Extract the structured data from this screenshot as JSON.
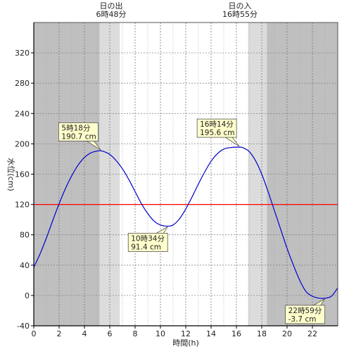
{
  "chart_data": {
    "type": "line",
    "title": "",
    "xlabel": "時間(h)",
    "ylabel": "水位(cm)",
    "xlim": [
      0,
      24
    ],
    "ylim": [
      -40,
      360
    ],
    "xticks": [
      0,
      2,
      4,
      6,
      8,
      10,
      12,
      14,
      16,
      18,
      20,
      22
    ],
    "yticks": [
      -40,
      0,
      40,
      80,
      120,
      160,
      200,
      240,
      280,
      320
    ],
    "grid": true,
    "night_color": "#bfbfbf",
    "twilight_color": "#dcdcdc",
    "day_color": "#ffffff",
    "series_color": "#0000cc",
    "reference_color": "#ff0000",
    "reference_value": 120,
    "sun": {
      "sunrise": {
        "title": "日の出",
        "time": "6時48分",
        "hour": 6.8
      },
      "sunset": {
        "title": "日の入",
        "time": "16時55分",
        "hour": 16.92
      },
      "dawn_start_hour": 5.2,
      "dusk_end_hour": 18.4
    },
    "series": [
      {
        "values_x": [
          0,
          0.5,
          1,
          1.5,
          2,
          2.5,
          3,
          3.5,
          4,
          4.5,
          5,
          5.3,
          5.5,
          6,
          6.5,
          7,
          7.5,
          8,
          8.5,
          9,
          9.5,
          10,
          10.57,
          11,
          11.5,
          12,
          12.5,
          13,
          13.5,
          14,
          14.5,
          15,
          15.5,
          16.23,
          16.5,
          17,
          17.5,
          18,
          18.5,
          19,
          19.5,
          20,
          20.5,
          21,
          21.5,
          22,
          22.5,
          22.98,
          23.5,
          24
        ],
        "values_y": [
          37,
          55,
          76,
          99,
          121,
          141,
          158,
          172,
          182,
          188,
          190.5,
          190.7,
          190,
          186,
          178,
          167,
          153,
          137,
          121,
          108,
          98,
          93,
          91.4,
          93,
          101,
          114,
          130,
          147,
          163,
          177,
          187,
          193,
          195,
          195.6,
          195,
          190,
          178,
          160,
          137,
          112,
          87,
          62,
          40,
          20,
          5,
          -1,
          -3.5,
          -3.7,
          -1,
          10
        ]
      }
    ],
    "annotations": [
      {
        "time": "5時18分",
        "value": "190.7 cm",
        "x": 5.3,
        "y": 190.7
      },
      {
        "time": "10時34分",
        "value": "91.4 cm",
        "x": 10.57,
        "y": 91.4
      },
      {
        "time": "16時14分",
        "value": "195.6 cm",
        "x": 16.23,
        "y": 195.6
      },
      {
        "time": "22時59分",
        "value": "-3.7 cm",
        "x": 22.98,
        "y": -3.7
      }
    ]
  }
}
